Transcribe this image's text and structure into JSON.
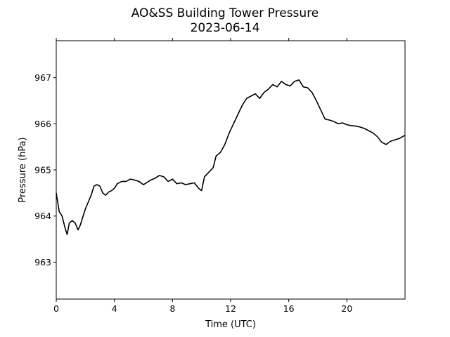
{
  "chart_data": {
    "type": "line",
    "title": "AO&SS Building Tower Pressure",
    "subtitle": "2023-06-14",
    "xlabel": "Time (UTC)",
    "ylabel": "Pressure (hPa)",
    "xlim": [
      0,
      24
    ],
    "ylim": [
      962.2,
      967.8
    ],
    "xticks": [
      0,
      4,
      8,
      12,
      16,
      20
    ],
    "yticks": [
      963,
      964,
      965,
      966,
      967
    ],
    "grid": false,
    "legend": "none",
    "series": [
      {
        "color": "#000000",
        "x": [
          0.0,
          0.2,
          0.4,
          0.6,
          0.75,
          0.9,
          1.1,
          1.3,
          1.5,
          1.65,
          1.8,
          2.0,
          2.2,
          2.4,
          2.6,
          2.8,
          3.0,
          3.2,
          3.4,
          3.6,
          3.8,
          4.0,
          4.2,
          4.5,
          4.8,
          5.1,
          5.4,
          5.7,
          6.0,
          6.2,
          6.5,
          6.8,
          7.1,
          7.4,
          7.7,
          8.0,
          8.3,
          8.6,
          8.9,
          9.2,
          9.5,
          9.8,
          10.0,
          10.2,
          10.5,
          10.8,
          11.0,
          11.3,
          11.6,
          11.9,
          12.2,
          12.5,
          12.8,
          13.1,
          13.4,
          13.7,
          14.0,
          14.3,
          14.6,
          14.9,
          15.2,
          15.5,
          15.8,
          16.1,
          16.4,
          16.7,
          17.0,
          17.3,
          17.6,
          17.9,
          18.2,
          18.5,
          18.8,
          19.1,
          19.4,
          19.7,
          20.0,
          20.3,
          20.6,
          20.9,
          21.2,
          21.5,
          21.8,
          22.1,
          22.4,
          22.7,
          23.0,
          23.3,
          23.6,
          24.0
        ],
        "y": [
          964.5,
          964.1,
          964.0,
          963.75,
          963.6,
          963.85,
          963.9,
          963.85,
          963.7,
          963.8,
          963.95,
          964.15,
          964.3,
          964.45,
          964.65,
          964.68,
          964.65,
          964.5,
          964.45,
          964.52,
          964.55,
          964.6,
          964.7,
          964.75,
          964.75,
          964.8,
          964.78,
          964.75,
          964.68,
          964.72,
          964.78,
          964.82,
          964.88,
          964.85,
          964.75,
          964.8,
          964.7,
          964.72,
          964.68,
          964.7,
          964.72,
          964.6,
          964.55,
          964.85,
          964.95,
          965.05,
          965.3,
          965.38,
          965.55,
          965.8,
          966.0,
          966.2,
          966.4,
          966.55,
          966.6,
          966.65,
          966.55,
          966.68,
          966.75,
          966.85,
          966.8,
          966.92,
          966.85,
          966.82,
          966.92,
          966.95,
          966.8,
          966.78,
          966.68,
          966.5,
          966.3,
          966.1,
          966.08,
          966.05,
          966.0,
          966.02,
          965.98,
          965.96,
          965.95,
          965.93,
          965.9,
          965.85,
          965.8,
          965.72,
          965.6,
          965.55,
          965.62,
          965.65,
          965.68,
          965.75
        ]
      }
    ]
  }
}
